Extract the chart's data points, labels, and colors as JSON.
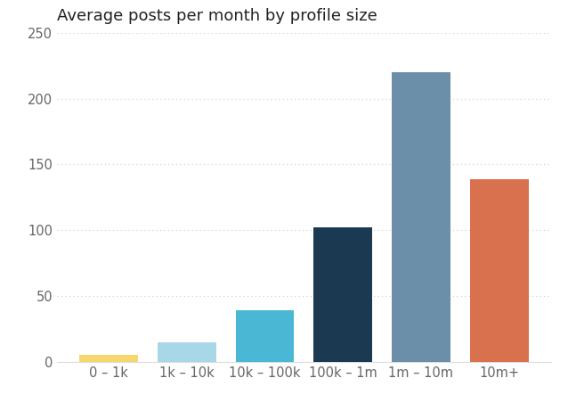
{
  "title": "Average posts per month by profile size",
  "categories": [
    "0 – 1k",
    "1k – 10k",
    "10k – 100k",
    "100k – 1m",
    "1m – 10m",
    "10m+"
  ],
  "values": [
    5,
    15,
    39,
    102,
    220,
    139
  ],
  "bar_colors": [
    "#f5d76e",
    "#a8d8e8",
    "#4ab8d4",
    "#1b3a52",
    "#6b8fa8",
    "#d9714e"
  ],
  "ylim": [
    0,
    250
  ],
  "yticks": [
    0,
    50,
    100,
    150,
    200,
    250
  ],
  "background_color": "#ffffff",
  "title_fontsize": 13,
  "tick_fontsize": 10.5,
  "grid_color": "#cccccc",
  "bar_width": 0.75
}
